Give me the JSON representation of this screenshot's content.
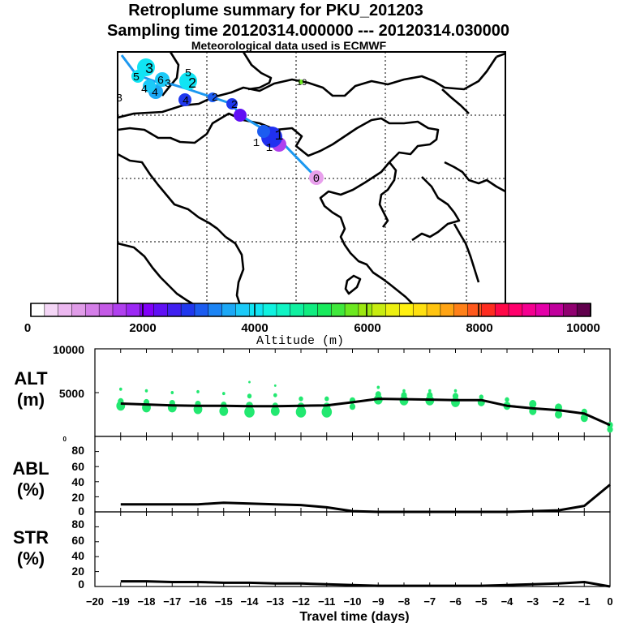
{
  "header": {
    "title": "Retroplume summary for PKU_201203",
    "sampling": "Sampling time   20120314.000000 --- 20120314.030000",
    "met": "Meteorological data used is ECMWF"
  },
  "map": {
    "day_labels": [
      "0",
      "1",
      "1",
      "1",
      "2",
      "2",
      "3",
      "3",
      "4",
      "4",
      "4",
      "5",
      "5",
      "6",
      "3",
      "2",
      "19"
    ]
  },
  "colorbar": {
    "colors": [
      "#ffffff",
      "#f4d6f6",
      "#ecb8f0",
      "#e09ce8",
      "#d47ee8",
      "#c45ae6",
      "#b040ee",
      "#9c28f4",
      "#8000f8",
      "#6010f4",
      "#4020f0",
      "#2038ee",
      "#1c5cf0",
      "#1c84f4",
      "#1ca8f6",
      "#1ccaf8",
      "#10e4f4",
      "#10f2e0",
      "#10f4c4",
      "#10f0a0",
      "#10ec80",
      "#18ea5c",
      "#40e83c",
      "#6ce820",
      "#9ce810",
      "#c8ec10",
      "#ecf010",
      "#fff010",
      "#ffe010",
      "#ffc410",
      "#ffa414",
      "#ff8018",
      "#ff581c",
      "#ff2c20",
      "#ff0848",
      "#ff006c",
      "#f40090",
      "#e400a8",
      "#c0009c",
      "#900070",
      "#60004c"
    ],
    "tick_labels": [
      "0",
      "2000",
      "4000",
      "6000",
      "8000",
      "10000"
    ],
    "title": "Altitude (m)"
  },
  "chart_data": [
    {
      "type": "line",
      "title": "ALT",
      "ylabel": "(m)",
      "ylim": [
        0,
        10000
      ],
      "ytick_labels": [
        "10000",
        "5000",
        "0"
      ],
      "xlim": [
        -20,
        0
      ],
      "x": [
        -19,
        -18,
        -17,
        -16,
        -15,
        -14,
        -13,
        -12,
        -11,
        -10,
        -9,
        -8,
        -7,
        -6,
        -5,
        -4,
        -3,
        -2,
        -1,
        0
      ],
      "values": [
        3750,
        3650,
        3550,
        3500,
        3500,
        3450,
        3450,
        3500,
        3550,
        3900,
        4300,
        4250,
        4200,
        4150,
        4150,
        3500,
        3200,
        3000,
        2600,
        1300
      ],
      "scatter_color": "#22e870",
      "scatter": [
        {
          "x": -19,
          "y": 3500,
          "s": 6
        },
        {
          "x": -19,
          "y": 4000,
          "s": 4
        },
        {
          "x": -19,
          "y": 5400,
          "s": 2
        },
        {
          "x": -18,
          "y": 3300,
          "s": 6
        },
        {
          "x": -18,
          "y": 3900,
          "s": 4
        },
        {
          "x": -18,
          "y": 5200,
          "s": 2
        },
        {
          "x": -17,
          "y": 3300,
          "s": 6
        },
        {
          "x": -17,
          "y": 3800,
          "s": 4
        },
        {
          "x": -17,
          "y": 5000,
          "s": 2
        },
        {
          "x": -16,
          "y": 3100,
          "s": 6
        },
        {
          "x": -16,
          "y": 3700,
          "s": 4
        },
        {
          "x": -16,
          "y": 5100,
          "s": 2
        },
        {
          "x": -15,
          "y": 2900,
          "s": 6
        },
        {
          "x": -15,
          "y": 3600,
          "s": 4
        },
        {
          "x": -15,
          "y": 4900,
          "s": 2
        },
        {
          "x": -14,
          "y": 2800,
          "s": 7
        },
        {
          "x": -14,
          "y": 3500,
          "s": 5
        },
        {
          "x": -14,
          "y": 4600,
          "s": 3
        },
        {
          "x": -14,
          "y": 6200,
          "s": 1.5
        },
        {
          "x": -13,
          "y": 2900,
          "s": 6
        },
        {
          "x": -13,
          "y": 3500,
          "s": 4
        },
        {
          "x": -13,
          "y": 4700,
          "s": 2.5
        },
        {
          "x": -13,
          "y": 5800,
          "s": 1.5
        },
        {
          "x": -12,
          "y": 2800,
          "s": 7
        },
        {
          "x": -12,
          "y": 3400,
          "s": 5
        },
        {
          "x": -12,
          "y": 4300,
          "s": 3
        },
        {
          "x": -11,
          "y": 2800,
          "s": 7
        },
        {
          "x": -11,
          "y": 3400,
          "s": 5
        },
        {
          "x": -11,
          "y": 4300,
          "s": 3
        },
        {
          "x": -10,
          "y": 3400,
          "s": 4
        },
        {
          "x": -10,
          "y": 4100,
          "s": 4
        },
        {
          "x": -9,
          "y": 4200,
          "s": 6
        },
        {
          "x": -9,
          "y": 4800,
          "s": 4
        },
        {
          "x": -9,
          "y": 5600,
          "s": 2
        },
        {
          "x": -8,
          "y": 4100,
          "s": 6
        },
        {
          "x": -8,
          "y": 4700,
          "s": 4
        },
        {
          "x": -8,
          "y": 5200,
          "s": 2
        },
        {
          "x": -7,
          "y": 4100,
          "s": 6
        },
        {
          "x": -7,
          "y": 4700,
          "s": 4
        },
        {
          "x": -7,
          "y": 5200,
          "s": 2
        },
        {
          "x": -6,
          "y": 3900,
          "s": 6
        },
        {
          "x": -6,
          "y": 4600,
          "s": 4
        },
        {
          "x": -6,
          "y": 5200,
          "s": 2
        },
        {
          "x": -5,
          "y": 3900,
          "s": 5
        },
        {
          "x": -5,
          "y": 4500,
          "s": 3
        },
        {
          "x": -4,
          "y": 3500,
          "s": 5
        },
        {
          "x": -4,
          "y": 4200,
          "s": 3
        },
        {
          "x": -3,
          "y": 2900,
          "s": 5
        },
        {
          "x": -3,
          "y": 3700,
          "s": 5
        },
        {
          "x": -2,
          "y": 2500,
          "s": 5
        },
        {
          "x": -2,
          "y": 3300,
          "s": 5
        },
        {
          "x": -1,
          "y": 2100,
          "s": 5
        },
        {
          "x": -1,
          "y": 2800,
          "s": 4
        },
        {
          "x": 0,
          "y": 800,
          "s": 4
        },
        {
          "x": 0,
          "y": 1300,
          "s": 4
        }
      ]
    },
    {
      "type": "line",
      "title": "ABL",
      "ylabel": "(%)",
      "ylim": [
        0,
        100
      ],
      "ytick_labels": [
        "80",
        "60",
        "40",
        "20",
        "0"
      ],
      "xlim": [
        -20,
        0
      ],
      "x": [
        -19,
        -18,
        -17,
        -16,
        -15,
        -14,
        -13,
        -12,
        -11,
        -10,
        -9,
        -8,
        -7,
        -6,
        -5,
        -4,
        -3,
        -2,
        -1,
        0
      ],
      "values": [
        10,
        10,
        10,
        10,
        12,
        11,
        10,
        9,
        6,
        1,
        0,
        0,
        0,
        0,
        0,
        0,
        1,
        2,
        8,
        36
      ]
    },
    {
      "type": "line",
      "title": "STR",
      "ylabel": "(%)",
      "ylim": [
        0,
        100
      ],
      "ytick_labels": [
        "80",
        "60",
        "40",
        "20",
        "0"
      ],
      "xlim": [
        -20,
        0
      ],
      "x": [
        -19,
        -18,
        -17,
        -16,
        -15,
        -14,
        -13,
        -12,
        -11,
        -10,
        -9,
        -8,
        -7,
        -6,
        -5,
        -4,
        -3,
        -2,
        -1,
        0
      ],
      "values": [
        7,
        7,
        6,
        6,
        5,
        5,
        4,
        4,
        3,
        2,
        1,
        1,
        1,
        1,
        1,
        2,
        3,
        4,
        6,
        0
      ],
      "xtick_labels": [
        "−20",
        "−19",
        "−18",
        "−17",
        "−16",
        "−15",
        "−14",
        "−13",
        "−12",
        "−11",
        "−10",
        "−9",
        "−8",
        "−7",
        "−6",
        "−5",
        "−4",
        "−3",
        "−2",
        "−1",
        "0"
      ],
      "xlabel": "Travel time (days)"
    }
  ]
}
